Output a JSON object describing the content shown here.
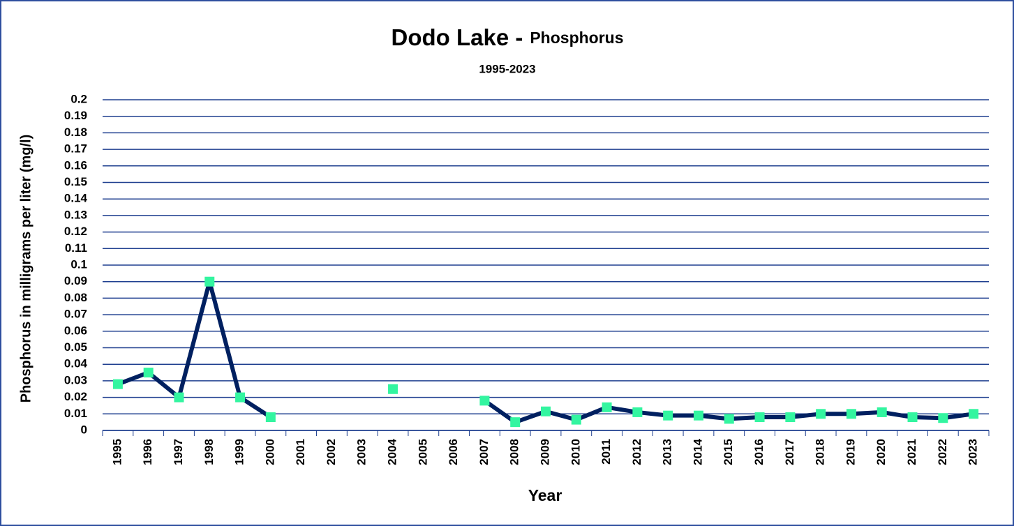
{
  "chart_data": {
    "type": "line",
    "title": [
      "Dodo Lake -",
      "Phosphorus"
    ],
    "subtitle": "1995-2023",
    "x_label": "Year",
    "y_label": "Phosphorus in milligrams per liter (mg/l)",
    "categories": [
      "1995",
      "1996",
      "1997",
      "1998",
      "1999",
      "2000",
      "2001",
      "2002",
      "2003",
      "2004",
      "2005",
      "2006",
      "2007",
      "2008",
      "2009",
      "2010",
      "2011",
      "2012",
      "2013",
      "2014",
      "2015",
      "2016",
      "2017",
      "2018",
      "2019",
      "2020",
      "2021",
      "2022",
      "2023"
    ],
    "series": [
      {
        "name": "Phosphorus",
        "color": "#002060",
        "marker_color": "#33f5a0",
        "values": [
          0.028,
          0.035,
          0.02,
          0.09,
          0.02,
          0.008,
          null,
          null,
          null,
          0.025,
          null,
          null,
          0.018,
          0.005,
          0.0115,
          0.0065,
          0.014,
          0.011,
          0.009,
          0.009,
          0.007,
          0.008,
          0.008,
          0.01,
          0.01,
          0.011,
          0.008,
          0.0075,
          0.01
        ]
      }
    ],
    "ylim": [
      0,
      0.2
    ],
    "yticks": [
      0,
      0.01,
      0.02,
      0.03,
      0.04,
      0.05,
      0.06,
      0.07,
      0.08,
      0.09,
      0.1,
      0.11,
      0.12,
      0.13,
      0.14,
      0.15,
      0.16,
      0.17,
      0.18,
      0.19,
      0.2
    ],
    "grid": true
  }
}
